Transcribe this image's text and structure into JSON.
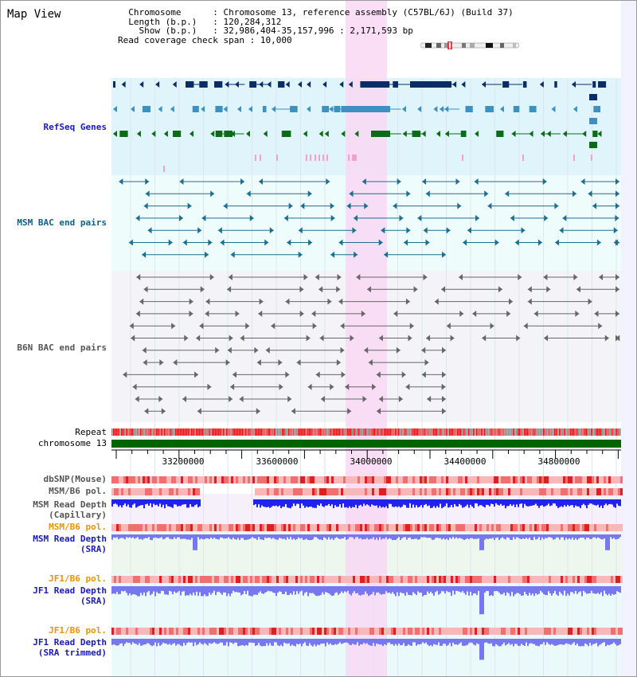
{
  "app": {
    "title": "Map View"
  },
  "header": {
    "chromosome_key": "Chromosome",
    "chromosome_val": "Chromosome 13, reference assembly (C57BL/6J) (Build 37)",
    "length_key": "Length (b.p.)",
    "length_val": "120,284,312",
    "show_key": "Show (b.p.)",
    "show_val": "32,986,404-35,157,996 : 2,171,593 bp",
    "coverage_key": "Read coverage check span",
    "coverage_val": "10,000"
  },
  "tracks": {
    "refseq": "RefSeq Genes",
    "msm_bac": "MSM BAC end pairs",
    "b6n_bac": "B6N BAC end pairs",
    "repeat": "Repeat",
    "chromosome": "chromosome 13",
    "dbsnp": "dbSNP(Mouse)",
    "msm_b6_pol_1": "MSM/B6 pol.",
    "msm_depth_cap_1": "MSM Read Depth",
    "msm_depth_cap_2": "(Capillary)",
    "msm_b6_pol_2": "MSM/B6 pol.",
    "msm_depth_sra_1": "MSM Read Depth",
    "msm_depth_sra_2": "(SRA)",
    "jf1_b6_pol_1": "JF1/B6 pol.",
    "jf1_depth_sra_1": "JF1 Read Depth",
    "jf1_depth_sra_2": "(SRA)",
    "jf1_b6_pol_2": "JF1/B6 pol.",
    "jf1_depth_trim_1": "JF1 Read Depth",
    "jf1_depth_trim_2": "(SRA trimmed)"
  },
  "axis": {
    "ticks": [
      "33200000",
      "33600000",
      "34000000",
      "34400000",
      "34800000"
    ]
  },
  "colors": {
    "refseq_bg": "#e0f4fb",
    "bac_bg": "#eefcfb",
    "b6n_bg": "#f4f4f8",
    "highlight": "#f8d8f4",
    "gene_dark": "#0b2d66",
    "gene_mid": "#3f8fbf",
    "gene_green": "#0b6b16",
    "msm_pair": "#1d6f8f",
    "b6n_pair": "#666666",
    "chrom_bar": "#006400",
    "depth_blue": "#2222ee",
    "depth_light": "#7777ee"
  }
}
